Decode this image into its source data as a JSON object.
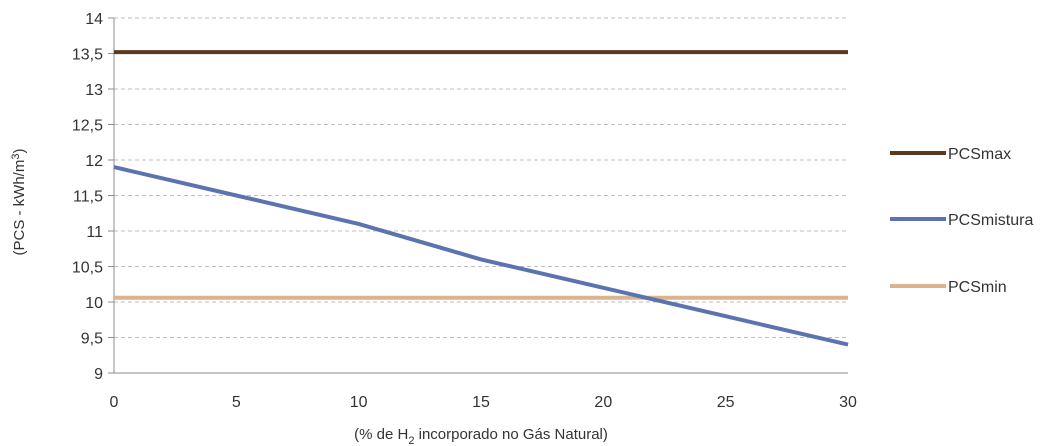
{
  "chart_data": {
    "type": "line",
    "title": "",
    "xlabel": "",
    "ylabel": "",
    "xlabel_parts": [
      "(% de H",
      "2",
      " incorporado no Gás Natural)"
    ],
    "ylabel_parts": [
      "(PCS - kWh/m",
      "3",
      ")"
    ],
    "xlim": [
      0,
      30
    ],
    "ylim": [
      9,
      14
    ],
    "x_ticks": [
      0,
      5,
      10,
      15,
      20,
      25,
      30
    ],
    "y_ticks": [
      9,
      9.5,
      10,
      10.5,
      11,
      11.5,
      12,
      12.5,
      13,
      13.5,
      14
    ],
    "x_tick_labels": [
      "0",
      "5",
      "10",
      "15",
      "20",
      "25",
      "30"
    ],
    "y_tick_labels": [
      "9",
      "9,5",
      "10",
      "10,5",
      "11",
      "11,5",
      "12",
      "12,5",
      "13",
      "13,5",
      "14"
    ],
    "grid": "horizontal dashed",
    "legend_position": "right",
    "series": [
      {
        "name": "PCSmax",
        "color": "#5C3A21",
        "x": [
          0,
          30
        ],
        "y": [
          13.52,
          13.52
        ]
      },
      {
        "name": "PCSmistura",
        "color": "#5B74B0",
        "x": [
          0,
          5,
          10,
          15,
          20,
          25,
          30
        ],
        "y": [
          11.9,
          11.5,
          11.1,
          10.6,
          10.2,
          9.8,
          9.4
        ]
      },
      {
        "name": "PCSmin",
        "color": "#D9B48C",
        "x": [
          0,
          30
        ],
        "y": [
          10.06,
          10.06
        ]
      }
    ]
  }
}
